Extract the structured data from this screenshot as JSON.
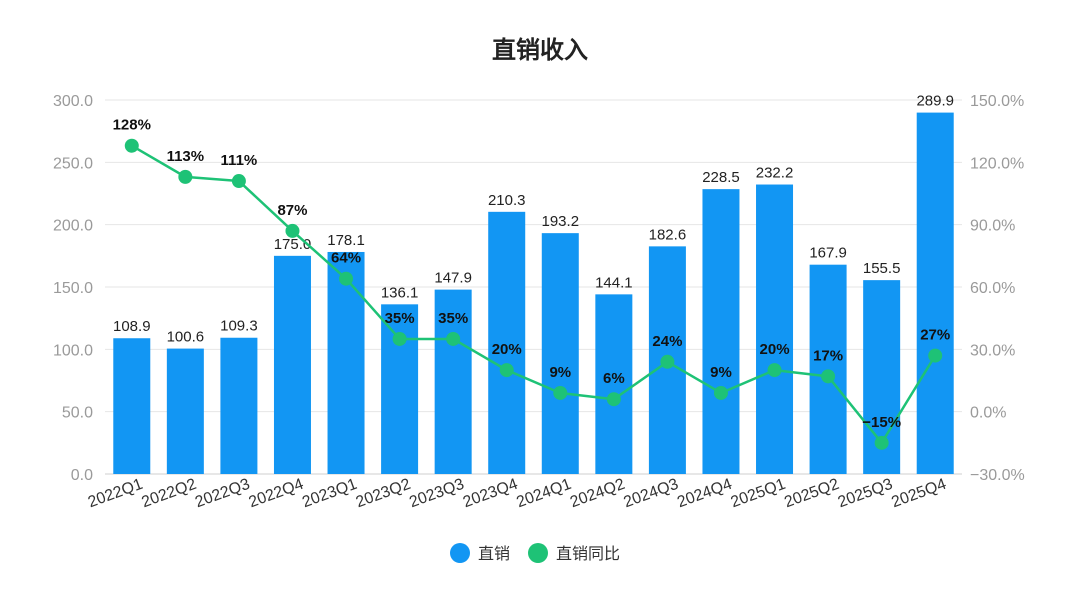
{
  "chart_data": {
    "type": "bar",
    "title": "直销收入",
    "categories": [
      "2022Q1",
      "2022Q2",
      "2022Q3",
      "2022Q4",
      "2023Q1",
      "2023Q2",
      "2023Q3",
      "2023Q4",
      "2024Q1",
      "2024Q2",
      "2024Q3",
      "2024Q4",
      "2025Q1",
      "2025Q2",
      "2025Q3",
      "2025Q4"
    ],
    "series": [
      {
        "name": "直销",
        "type": "bar",
        "axis": "left",
        "color": "#1296f3",
        "values": [
          108.9,
          100.6,
          109.3,
          175.0,
          178.1,
          136.1,
          147.9,
          210.3,
          193.2,
          144.1,
          182.6,
          228.5,
          232.2,
          167.9,
          155.5,
          289.9
        ],
        "labels": [
          "108.9",
          "100.6",
          "109.3",
          "175.0",
          "178.1",
          "136.1",
          "147.9",
          "210.3",
          "193.2",
          "144.1",
          "182.6",
          "228.5",
          "232.2",
          "167.9",
          "155.5",
          "289.9"
        ]
      },
      {
        "name": "直销同比",
        "type": "line",
        "axis": "right",
        "color": "#1ec276",
        "values": [
          128,
          113,
          111,
          87,
          64,
          35,
          35,
          20,
          9,
          6,
          24,
          9,
          20,
          17,
          -15,
          27
        ],
        "labels": [
          "128%",
          "113%",
          "111%",
          "87%",
          "64%",
          "35%",
          "35%",
          "20%",
          "9%",
          "6%",
          "24%",
          "9%",
          "20%",
          "17%",
          "−15%",
          "27%"
        ]
      }
    ],
    "y_left": {
      "min": 0,
      "max": 300,
      "ticks": [
        "0.0",
        "50.0",
        "100.0",
        "150.0",
        "200.0",
        "250.0",
        "300.0"
      ]
    },
    "y_right": {
      "min": -30,
      "max": 150,
      "ticks": [
        "−30.0%",
        "0.0%",
        "30.0%",
        "60.0%",
        "90.0%",
        "120.0%",
        "150.0%"
      ]
    },
    "legend": {
      "position": "bottom",
      "items": [
        "直销",
        "直销同比"
      ]
    }
  }
}
